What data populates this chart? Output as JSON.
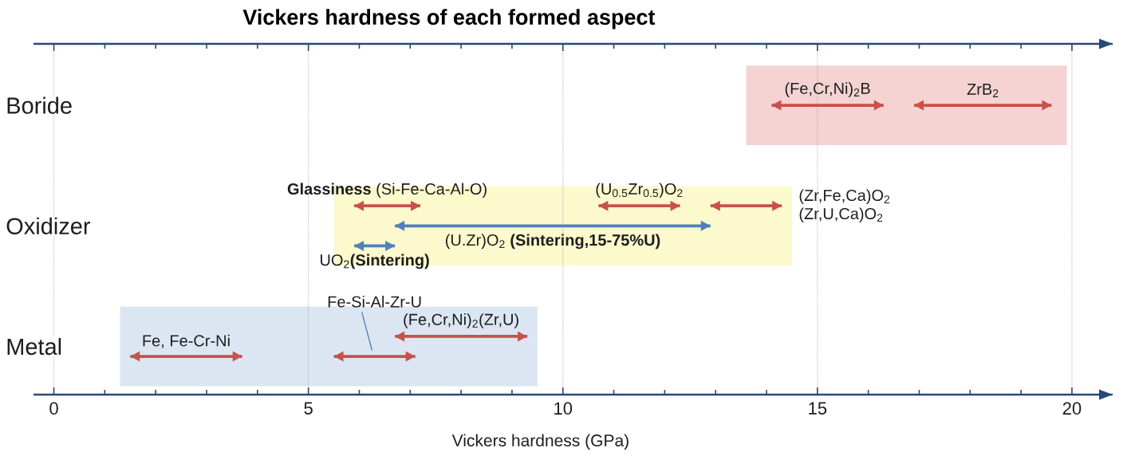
{
  "chart_data": {
    "type": "bar",
    "orientation": "horizontal",
    "title": "Vickers hardness of each formed aspect",
    "xlabel": "Vickers hardness (GPa)",
    "categories": [
      "Boride",
      "Oxidizer",
      "Metal"
    ],
    "xlim": [
      -0.4,
      20.8
    ],
    "xticks": [
      0,
      5,
      10,
      15,
      20
    ],
    "grid": "x",
    "bands": [
      {
        "axis": "x",
        "from": 13.6,
        "to": 19.9,
        "color": "#f5d3d3"
      },
      {
        "axis": "x",
        "from": 5.5,
        "to": 14.5,
        "color": "#fcf9cd"
      },
      {
        "axis": "x",
        "from": 1.3,
        "to": 9.5,
        "color": "#dce6f2"
      }
    ],
    "series": [
      {
        "name": "(Fe,Cr,Ni)$_{2}$B",
        "color": "#c9514b",
        "base": [
          14.1,
          null,
          null
        ],
        "values": [
          2.2,
          null,
          null
        ]
      },
      {
        "name": "ZrB$_{2}$",
        "color": "#c9514b",
        "base": [
          16.9,
          null,
          null
        ],
        "values": [
          2.7,
          null,
          null
        ]
      },
      {
        "name": "**Glassiness** (Si-Fe-Ca-Al-O)",
        "color": "#c9514b",
        "base": [
          null,
          5.9,
          null
        ],
        "values": [
          null,
          1.3,
          null
        ]
      },
      {
        "name": "(U$_{0.5}$Zr$_{0.5}$)O$_{2}$",
        "color": "#c9514b",
        "base": [
          null,
          10.7,
          null
        ],
        "values": [
          null,
          1.6,
          null
        ]
      },
      {
        "name": "(Zr,Fe,Ca)O$_{2}$ (Zr,U,Ca)O$_{2}$",
        "color": "#c9514b",
        "base": [
          null,
          12.9,
          null
        ],
        "values": [
          null,
          1.4,
          null
        ]
      },
      {
        "name": "(U.Zr)O$_{2}$ **(Sintering,15-75%U)**",
        "color": "#4f81bd",
        "base": [
          null,
          6.7,
          null
        ],
        "values": [
          null,
          6.2,
          null
        ]
      },
      {
        "name": "UO$_{2}$**(Sintering)**",
        "color": "#4f81bd",
        "base": [
          null,
          5.9,
          null
        ],
        "values": [
          null,
          0.8,
          null
        ]
      },
      {
        "name": "(Fe,Cr,Ni)$_{2}$(Zr,U)",
        "color": "#c9514b",
        "base": [
          null,
          null,
          6.7
        ],
        "values": [
          null,
          null,
          2.6
        ]
      },
      {
        "name": "Fe, Fe-Cr-Ni",
        "color": "#c9514b",
        "base": [
          null,
          null,
          1.5
        ],
        "values": [
          null,
          null,
          2.2
        ]
      },
      {
        "name": "Fe-Si-Al-Zr-U",
        "color": "#c9514b",
        "base": [
          null,
          null,
          5.5
        ],
        "values": [
          null,
          null,
          1.6
        ]
      }
    ]
  }
}
